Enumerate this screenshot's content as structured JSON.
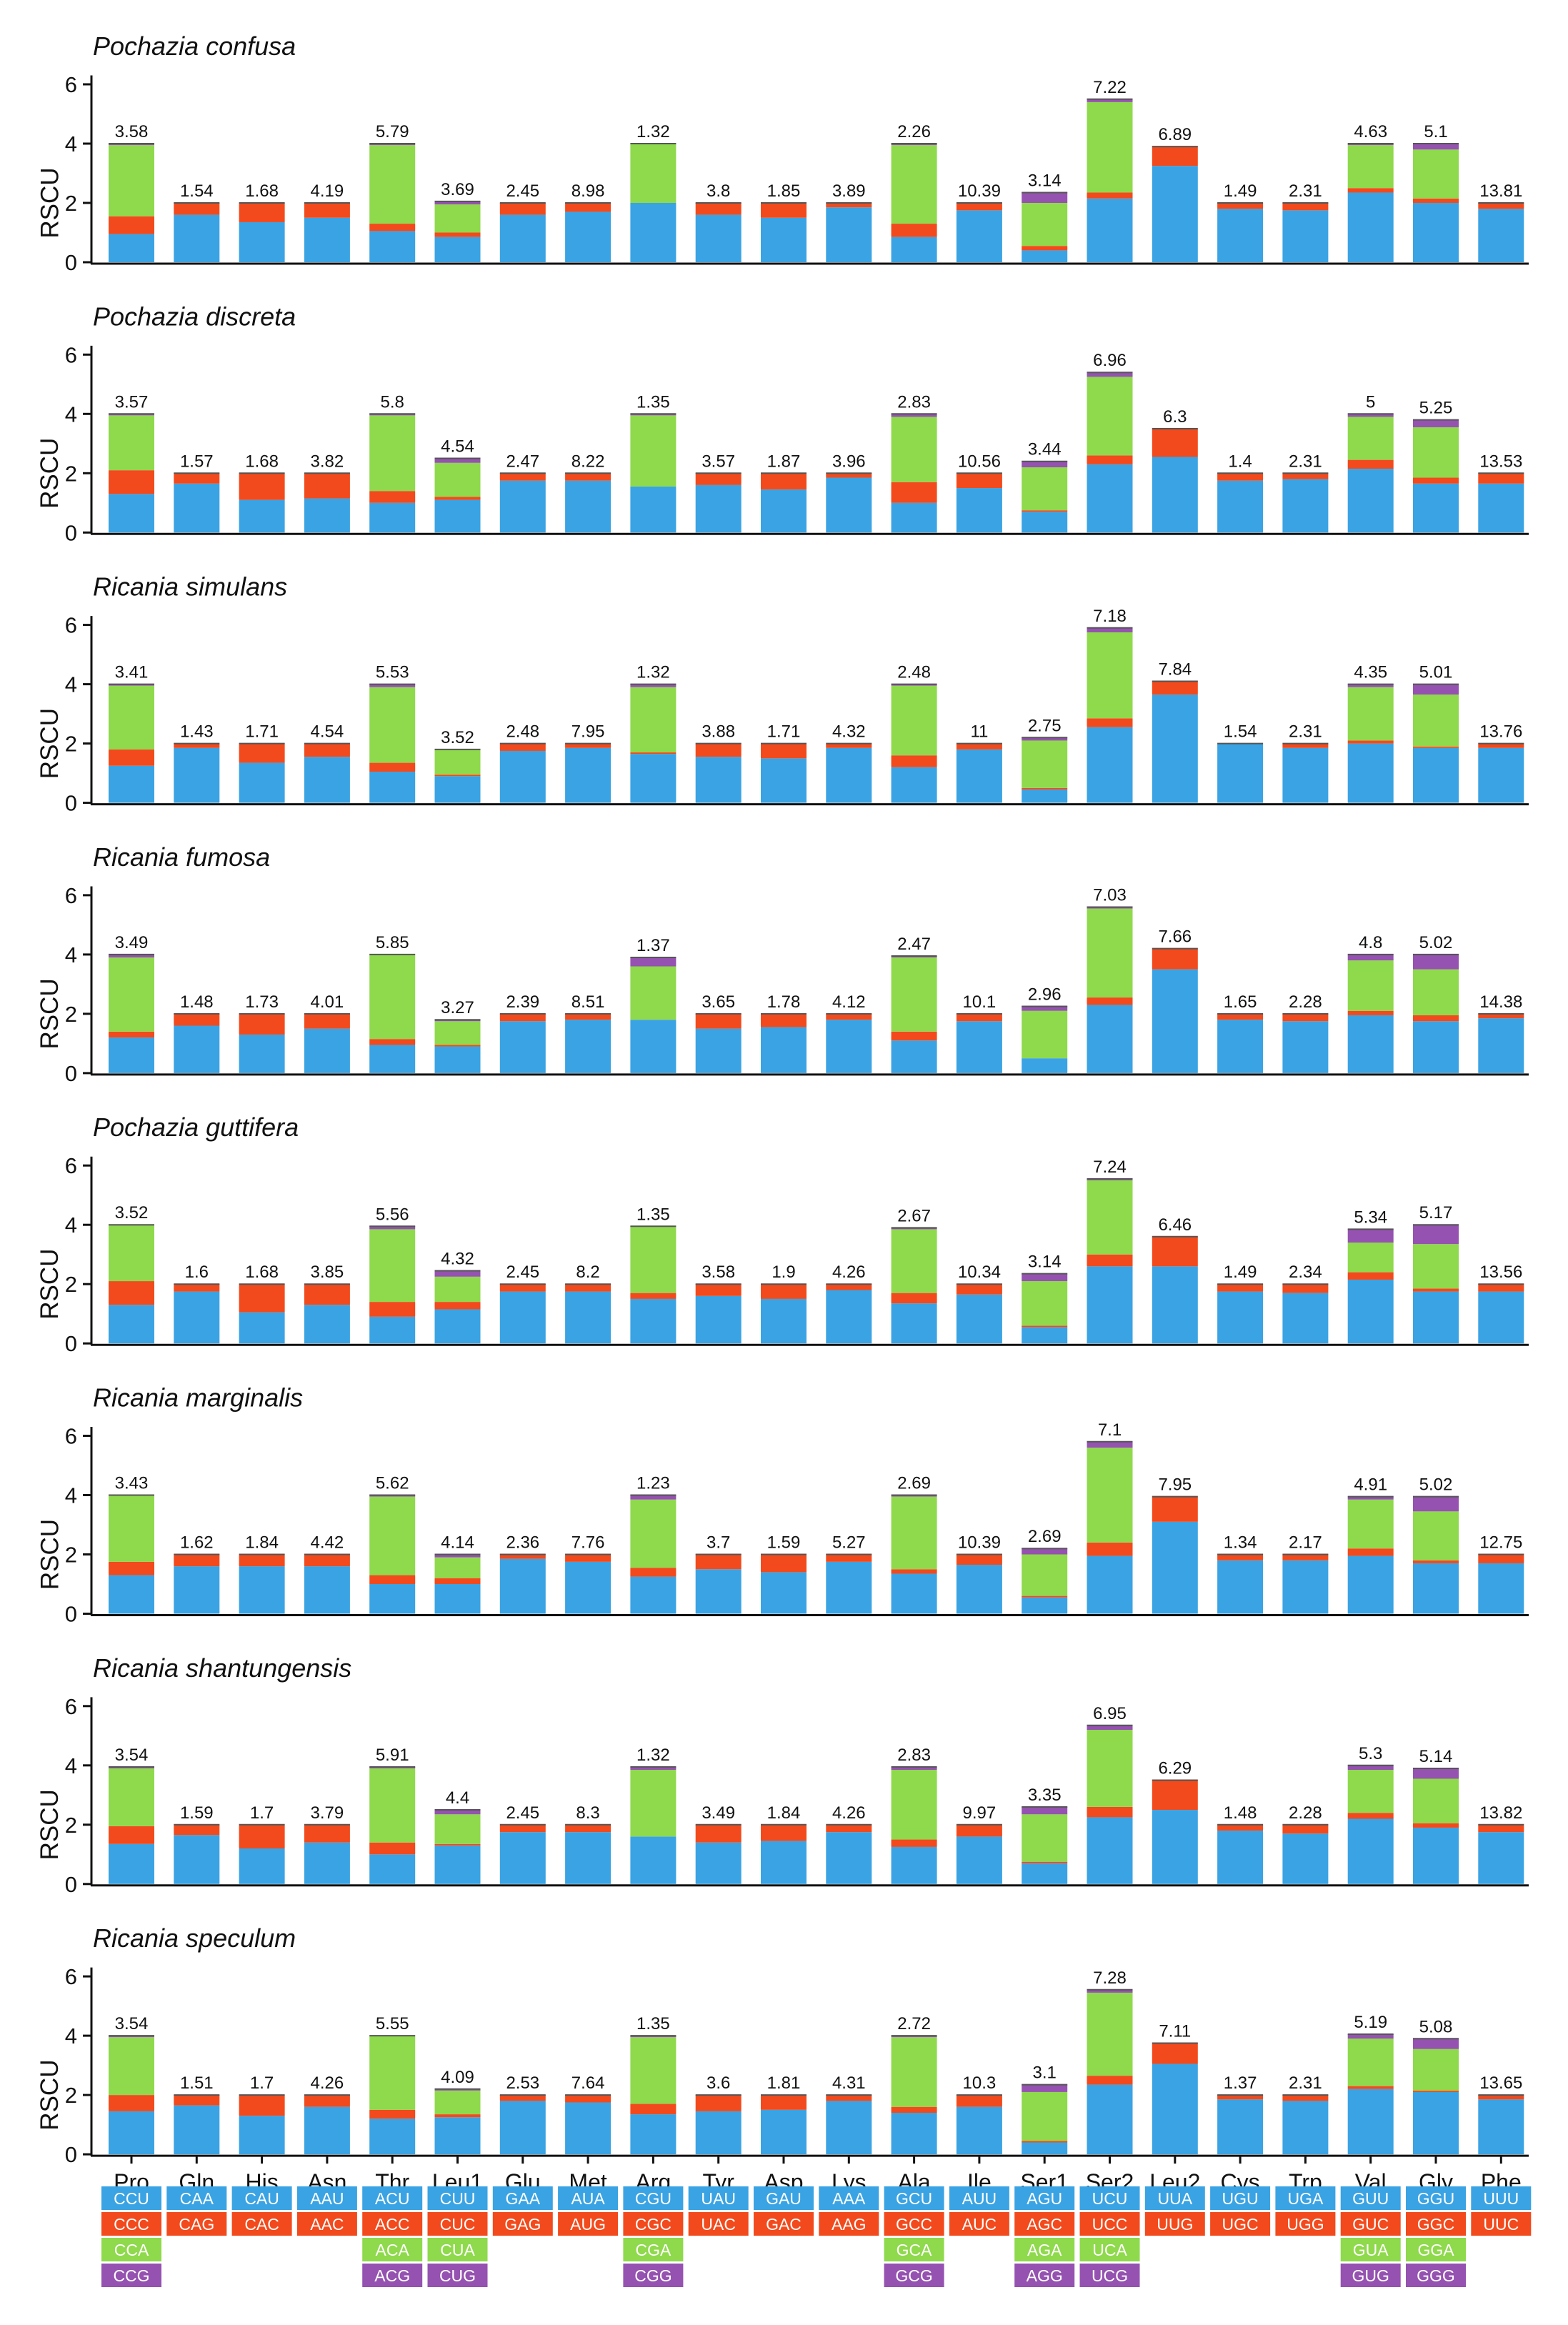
{
  "figure": {
    "ylabel": "RSCU",
    "yticks": [
      0,
      2,
      4,
      6
    ],
    "ylim": [
      0,
      6.3
    ]
  },
  "colors": {
    "c1": "#3aa3e3",
    "c2": "#f24a1c",
    "c3": "#8fd94c",
    "c4": "#9552b0"
  },
  "chart_data": {
    "type": "bar",
    "stacked": true,
    "categories": [
      "Pro",
      "Gln",
      "His",
      "Asn",
      "Thr",
      "Leu1",
      "Glu",
      "Met",
      "Arg",
      "Tyr",
      "Asp",
      "Lys",
      "Ala",
      "Ile",
      "Ser1",
      "Ser2",
      "Leu2",
      "Cys",
      "Trp",
      "Val",
      "Gly",
      "Phe"
    ],
    "layers": [
      "codon position 1 (blue)",
      "codon position 2 (red)",
      "codon position 3 (green)",
      "codon position 4 (purple)"
    ],
    "panels": [
      {
        "title": "Pochazia confusa",
        "labels": [
          "3.58",
          "1.54",
          "1.68",
          "4.19",
          "5.79",
          "3.69",
          "2.45",
          "8.98",
          "1.32",
          "3.8",
          "1.85",
          "3.89",
          "2.26",
          "10.39",
          "3.14",
          "7.22",
          "6.89",
          "1.49",
          "2.31",
          "4.63",
          "5.1",
          "13.81"
        ],
        "stacks": [
          [
            0.95,
            0.6,
            2.4,
            0.05
          ],
          [
            1.6,
            0.4
          ],
          [
            1.35,
            0.65
          ],
          [
            1.5,
            0.5
          ],
          [
            1.05,
            0.25,
            2.65,
            0.05
          ],
          [
            0.85,
            0.15,
            0.95,
            0.1
          ],
          [
            1.6,
            0.4
          ],
          [
            1.7,
            0.3
          ],
          [
            2.0,
            0.0,
            2.0,
            0.0
          ],
          [
            1.6,
            0.4
          ],
          [
            1.5,
            0.5
          ],
          [
            1.85,
            0.15
          ],
          [
            0.85,
            0.45,
            2.65,
            0.05
          ],
          [
            1.75,
            0.25
          ],
          [
            0.4,
            0.15,
            1.45,
            0.35
          ],
          [
            2.15,
            0.2,
            3.05,
            0.1
          ],
          [
            3.25,
            0.65
          ],
          [
            1.8,
            0.2
          ],
          [
            1.75,
            0.25
          ],
          [
            2.35,
            0.15,
            1.45,
            0.05
          ],
          [
            2.0,
            0.15,
            1.65,
            0.2
          ],
          [
            1.8,
            0.2
          ]
        ]
      },
      {
        "title": "Pochazia discreta",
        "labels": [
          "3.57",
          "1.57",
          "1.68",
          "3.82",
          "5.8",
          "4.54",
          "2.47",
          "8.22",
          "1.35",
          "3.57",
          "1.87",
          "3.96",
          "2.83",
          "10.56",
          "3.44",
          "6.96",
          "6.3",
          "1.4",
          "2.31",
          "5",
          "5.25",
          "13.53"
        ],
        "stacks": [
          [
            1.3,
            0.8,
            1.85,
            0.05
          ],
          [
            1.65,
            0.35
          ],
          [
            1.1,
            0.9
          ],
          [
            1.15,
            0.85
          ],
          [
            1.0,
            0.4,
            2.55,
            0.05
          ],
          [
            1.1,
            0.1,
            1.15,
            0.15
          ],
          [
            1.75,
            0.25
          ],
          [
            1.75,
            0.25
          ],
          [
            1.55,
            0.0,
            2.4,
            0.05
          ],
          [
            1.6,
            0.4
          ],
          [
            1.45,
            0.55
          ],
          [
            1.85,
            0.15
          ],
          [
            1.0,
            0.7,
            2.2,
            0.1
          ],
          [
            1.5,
            0.5
          ],
          [
            0.7,
            0.05,
            1.45,
            0.2
          ],
          [
            2.3,
            0.3,
            2.65,
            0.15
          ],
          [
            2.55,
            0.95
          ],
          [
            1.75,
            0.25
          ],
          [
            1.8,
            0.2
          ],
          [
            2.15,
            0.3,
            1.45,
            0.1
          ],
          [
            1.65,
            0.2,
            1.7,
            0.25
          ],
          [
            1.65,
            0.35
          ]
        ]
      },
      {
        "title": "Ricania simulans",
        "labels": [
          "3.41",
          "1.43",
          "1.71",
          "4.54",
          "5.53",
          "3.52",
          "2.48",
          "7.95",
          "1.32",
          "3.88",
          "1.71",
          "4.32",
          "2.48",
          "11",
          "2.75",
          "7.18",
          "7.84",
          "1.54",
          "2.31",
          "4.35",
          "5.01",
          "13.76"
        ],
        "stacks": [
          [
            1.25,
            0.55,
            2.15,
            0.05
          ],
          [
            1.85,
            0.15
          ],
          [
            1.35,
            0.65
          ],
          [
            1.55,
            0.45
          ],
          [
            1.05,
            0.3,
            2.55,
            0.1
          ],
          [
            0.9,
            0.05,
            0.85,
            0.0
          ],
          [
            1.75,
            0.25
          ],
          [
            1.85,
            0.15
          ],
          [
            1.65,
            0.05,
            2.2,
            0.1
          ],
          [
            1.55,
            0.45
          ],
          [
            1.5,
            0.5
          ],
          [
            1.85,
            0.15
          ],
          [
            1.2,
            0.4,
            2.35,
            0.05
          ],
          [
            1.8,
            0.2
          ],
          [
            0.45,
            0.05,
            1.6,
            0.1
          ],
          [
            2.55,
            0.3,
            2.9,
            0.15
          ],
          [
            3.65,
            0.45
          ],
          [
            2.0,
            0.0
          ],
          [
            1.85,
            0.15
          ],
          [
            2.0,
            0.1,
            1.8,
            0.1
          ],
          [
            1.85,
            0.05,
            1.75,
            0.35
          ],
          [
            1.85,
            0.15
          ]
        ]
      },
      {
        "title": "Ricania fumosa",
        "labels": [
          "3.49",
          "1.48",
          "1.73",
          "4.01",
          "5.85",
          "3.27",
          "2.39",
          "8.51",
          "1.37",
          "3.65",
          "1.78",
          "4.12",
          "2.47",
          "10.1",
          "2.96",
          "7.03",
          "7.66",
          "1.65",
          "2.28",
          "4.8",
          "5.02",
          "14.38"
        ],
        "stacks": [
          [
            1.2,
            0.2,
            2.5,
            0.1
          ],
          [
            1.6,
            0.4
          ],
          [
            1.3,
            0.7
          ],
          [
            1.5,
            0.5
          ],
          [
            0.95,
            0.2,
            2.85,
            0.0
          ],
          [
            0.9,
            0.05,
            0.8,
            0.05
          ],
          [
            1.75,
            0.25
          ],
          [
            1.8,
            0.2
          ],
          [
            1.8,
            0.0,
            1.8,
            0.3
          ],
          [
            1.5,
            0.5
          ],
          [
            1.55,
            0.45
          ],
          [
            1.8,
            0.2
          ],
          [
            1.1,
            0.3,
            2.5,
            0.05
          ],
          [
            1.75,
            0.25
          ],
          [
            0.5,
            0.0,
            1.6,
            0.15
          ],
          [
            2.3,
            0.25,
            3.0,
            0.05
          ],
          [
            3.5,
            0.7
          ],
          [
            1.8,
            0.2
          ],
          [
            1.75,
            0.25
          ],
          [
            1.95,
            0.15,
            1.7,
            0.2
          ],
          [
            1.75,
            0.2,
            1.55,
            0.5
          ],
          [
            1.85,
            0.15
          ]
        ]
      },
      {
        "title": "Pochazia guttifera",
        "labels": [
          "3.52",
          "1.6",
          "1.68",
          "3.85",
          "5.56",
          "4.32",
          "2.45",
          "8.2",
          "1.35",
          "3.58",
          "1.9",
          "4.26",
          "2.67",
          "10.34",
          "3.14",
          "7.24",
          "6.46",
          "1.49",
          "2.34",
          "5.34",
          "5.17",
          "13.56"
        ],
        "stacks": [
          [
            1.3,
            0.8,
            1.9,
            0.0
          ],
          [
            1.75,
            0.25
          ],
          [
            1.05,
            0.95
          ],
          [
            1.3,
            0.7
          ],
          [
            0.9,
            0.5,
            2.45,
            0.1
          ],
          [
            1.15,
            0.25,
            0.85,
            0.2
          ],
          [
            1.75,
            0.25
          ],
          [
            1.75,
            0.25
          ],
          [
            1.5,
            0.2,
            2.25,
            0.0
          ],
          [
            1.6,
            0.4
          ],
          [
            1.5,
            0.5
          ],
          [
            1.8,
            0.2
          ],
          [
            1.35,
            0.35,
            2.15,
            0.05
          ],
          [
            1.65,
            0.35
          ],
          [
            0.55,
            0.05,
            1.5,
            0.25
          ],
          [
            2.6,
            0.4,
            2.5,
            0.05
          ],
          [
            2.6,
            1.0
          ],
          [
            1.75,
            0.25
          ],
          [
            1.7,
            0.3
          ],
          [
            2.15,
            0.25,
            1.0,
            0.45
          ],
          [
            1.75,
            0.1,
            1.5,
            0.65
          ],
          [
            1.75,
            0.25
          ]
        ]
      },
      {
        "title": "Ricania marginalis",
        "labels": [
          "3.43",
          "1.62",
          "1.84",
          "4.42",
          "5.62",
          "4.14",
          "2.36",
          "7.76",
          "1.23",
          "3.7",
          "1.59",
          "5.27",
          "2.69",
          "10.39",
          "2.69",
          "7.1",
          "7.95",
          "1.34",
          "2.17",
          "4.91",
          "5.02",
          "12.75"
        ],
        "stacks": [
          [
            1.3,
            0.45,
            2.25,
            0.0
          ],
          [
            1.6,
            0.4
          ],
          [
            1.6,
            0.4
          ],
          [
            1.6,
            0.4
          ],
          [
            1.0,
            0.3,
            2.65,
            0.05
          ],
          [
            1.0,
            0.2,
            0.7,
            0.1
          ],
          [
            1.85,
            0.15
          ],
          [
            1.75,
            0.25
          ],
          [
            1.25,
            0.3,
            2.3,
            0.15
          ],
          [
            1.5,
            0.5
          ],
          [
            1.4,
            0.6
          ],
          [
            1.75,
            0.25
          ],
          [
            1.35,
            0.15,
            2.45,
            0.05
          ],
          [
            1.65,
            0.35
          ],
          [
            0.55,
            0.05,
            1.4,
            0.2
          ],
          [
            1.95,
            0.45,
            3.2,
            0.2
          ],
          [
            3.1,
            0.85
          ],
          [
            1.8,
            0.2
          ],
          [
            1.8,
            0.2
          ],
          [
            1.95,
            0.25,
            1.65,
            0.1
          ],
          [
            1.7,
            0.1,
            1.65,
            0.5
          ],
          [
            1.7,
            0.3
          ]
        ]
      },
      {
        "title": "Ricania shantungensis",
        "labels": [
          "3.54",
          "1.59",
          "1.7",
          "3.79",
          "5.91",
          "4.4",
          "2.45",
          "8.3",
          "1.32",
          "3.49",
          "1.84",
          "4.26",
          "2.83",
          "9.97",
          "3.35",
          "6.95",
          "6.29",
          "1.48",
          "2.28",
          "5.3",
          "5.14",
          "13.82"
        ],
        "stacks": [
          [
            1.35,
            0.6,
            1.95,
            0.05
          ],
          [
            1.65,
            0.35
          ],
          [
            1.2,
            0.8
          ],
          [
            1.4,
            0.6
          ],
          [
            1.0,
            0.4,
            2.5,
            0.05
          ],
          [
            1.3,
            0.05,
            1.0,
            0.15
          ],
          [
            1.75,
            0.25
          ],
          [
            1.75,
            0.25
          ],
          [
            1.6,
            0.0,
            2.25,
            0.1
          ],
          [
            1.4,
            0.6
          ],
          [
            1.45,
            0.55
          ],
          [
            1.75,
            0.25
          ],
          [
            1.25,
            0.25,
            2.35,
            0.1
          ],
          [
            1.6,
            0.4
          ],
          [
            0.7,
            0.05,
            1.6,
            0.25
          ],
          [
            2.25,
            0.35,
            2.6,
            0.15
          ],
          [
            2.5,
            1.0
          ],
          [
            1.8,
            0.2
          ],
          [
            1.7,
            0.3
          ],
          [
            2.2,
            0.2,
            1.45,
            0.15
          ],
          [
            1.9,
            0.15,
            1.5,
            0.35
          ],
          [
            1.75,
            0.25
          ]
        ]
      },
      {
        "title": "Ricania speculum",
        "labels": [
          "3.54",
          "1.51",
          "1.7",
          "4.26",
          "5.55",
          "4.09",
          "2.53",
          "7.64",
          "1.35",
          "3.6",
          "1.81",
          "4.31",
          "2.72",
          "10.3",
          "3.1",
          "7.28",
          "7.11",
          "1.37",
          "2.31",
          "5.19",
          "5.08",
          "13.65"
        ],
        "stacks": [
          [
            1.45,
            0.55,
            1.95,
            0.05
          ],
          [
            1.65,
            0.35
          ],
          [
            1.3,
            0.7
          ],
          [
            1.6,
            0.4
          ],
          [
            1.2,
            0.3,
            2.5,
            0.0
          ],
          [
            1.25,
            0.1,
            0.8,
            0.05
          ],
          [
            1.8,
            0.2
          ],
          [
            1.75,
            0.25
          ],
          [
            1.35,
            0.35,
            2.25,
            0.05
          ],
          [
            1.45,
            0.55
          ],
          [
            1.5,
            0.5
          ],
          [
            1.8,
            0.2
          ],
          [
            1.4,
            0.2,
            2.35,
            0.05
          ],
          [
            1.6,
            0.4
          ],
          [
            0.4,
            0.05,
            1.65,
            0.25
          ],
          [
            2.35,
            0.3,
            2.8,
            0.1
          ],
          [
            3.05,
            0.7
          ],
          [
            1.85,
            0.15
          ],
          [
            1.8,
            0.2
          ],
          [
            2.2,
            0.1,
            1.6,
            0.15
          ],
          [
            2.1,
            0.05,
            1.4,
            0.35
          ],
          [
            1.85,
            0.15
          ]
        ]
      }
    ],
    "codon_legend": [
      [
        "CCU",
        "CCC",
        "CCA",
        "CCG"
      ],
      [
        "CAA",
        "CAG"
      ],
      [
        "CAU",
        "CAC"
      ],
      [
        "AAU",
        "AAC"
      ],
      [
        "ACU",
        "ACC",
        "ACA",
        "ACG"
      ],
      [
        "CUU",
        "CUC",
        "CUA",
        "CUG"
      ],
      [
        "GAA",
        "GAG"
      ],
      [
        "AUA",
        "AUG"
      ],
      [
        "CGU",
        "CGC",
        "CGA",
        "CGG"
      ],
      [
        "UAU",
        "UAC"
      ],
      [
        "GAU",
        "GAC"
      ],
      [
        "AAA",
        "AAG"
      ],
      [
        "GCU",
        "GCC",
        "GCA",
        "GCG"
      ],
      [
        "AUU",
        "AUC"
      ],
      [
        "AGU",
        "AGC",
        "AGA",
        "AGG"
      ],
      [
        "UCU",
        "UCC",
        "UCA",
        "UCG"
      ],
      [
        "UUA",
        "UUG"
      ],
      [
        "UGU",
        "UGC"
      ],
      [
        "UGA",
        "UGG"
      ],
      [
        "GUU",
        "GUC",
        "GUA",
        "GUG"
      ],
      [
        "GGU",
        "GGC",
        "GGA",
        "GGG"
      ],
      [
        "UUU",
        "UUC"
      ]
    ]
  }
}
